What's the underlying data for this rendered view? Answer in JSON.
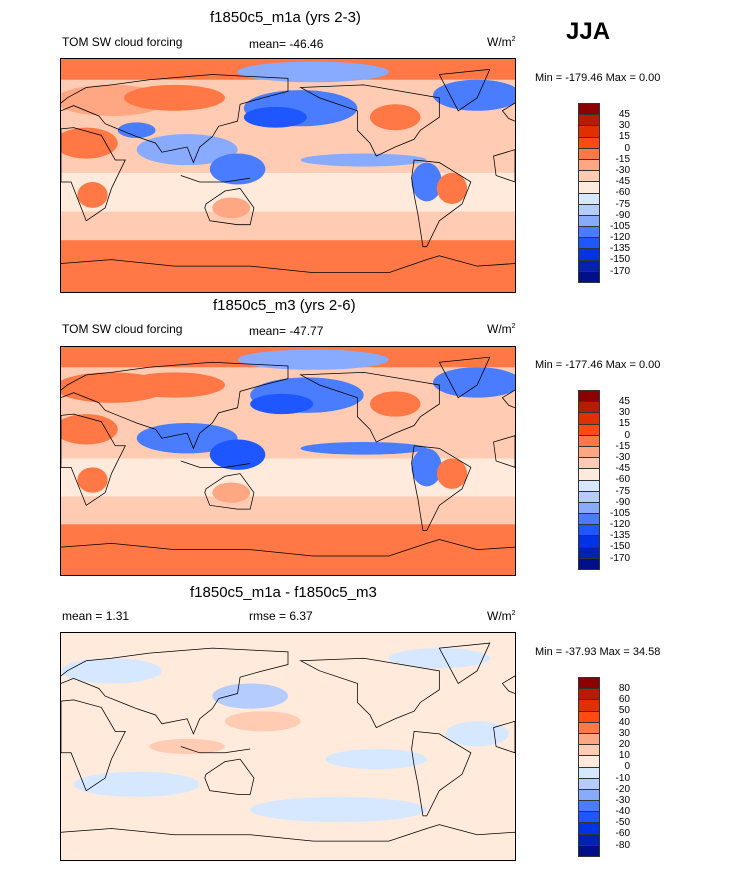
{
  "season": "JJA",
  "colors": [
    "#8b0000",
    "#b81c00",
    "#e03000",
    "#ff4a14",
    "#ff7845",
    "#ffa682",
    "#ffccb3",
    "#ffeadb",
    "#d6e8ff",
    "#b4ccff",
    "#88aaff",
    "#4a7cff",
    "#1e56ff",
    "#0033e6",
    "#0022b0",
    "#000f8a"
  ],
  "panels": [
    {
      "title": "f1850c5_m1a (yrs 2-3)",
      "left": "TOM SW cloud forcing",
      "center": "mean= -46.46",
      "units": "W/m",
      "units_sup": "2",
      "minmax": "Min = -179.46 Max =   0.00",
      "levels": [
        "45",
        "30",
        "15",
        "0",
        "-15",
        "-30",
        "-45",
        "-60",
        "-75",
        "-90",
        "-105",
        "-120",
        "-135",
        "-150",
        "-170"
      ]
    },
    {
      "title": "f1850c5_m3 (yrs 2-6)",
      "left": "TOM SW cloud forcing",
      "center": "mean= -47.77",
      "units": "W/m",
      "units_sup": "2",
      "minmax": "Min = -177.46 Max =   0.00",
      "levels": [
        "45",
        "30",
        "15",
        "0",
        "-15",
        "-30",
        "-45",
        "-60",
        "-75",
        "-90",
        "-105",
        "-120",
        "-135",
        "-150",
        "-170"
      ]
    },
    {
      "title": "f1850c5_m1a - f1850c5_m3",
      "left": "mean =   1.31",
      "center": "rmse =   6.37",
      "units": "W/m",
      "units_sup": "2",
      "minmax": "Min = -37.93 Max =  34.58",
      "levels": [
        "80",
        "60",
        "50",
        "40",
        "30",
        "20",
        "10",
        "0",
        "-10",
        "-20",
        "-30",
        "-40",
        "-50",
        "-60",
        "-80"
      ]
    }
  ]
}
